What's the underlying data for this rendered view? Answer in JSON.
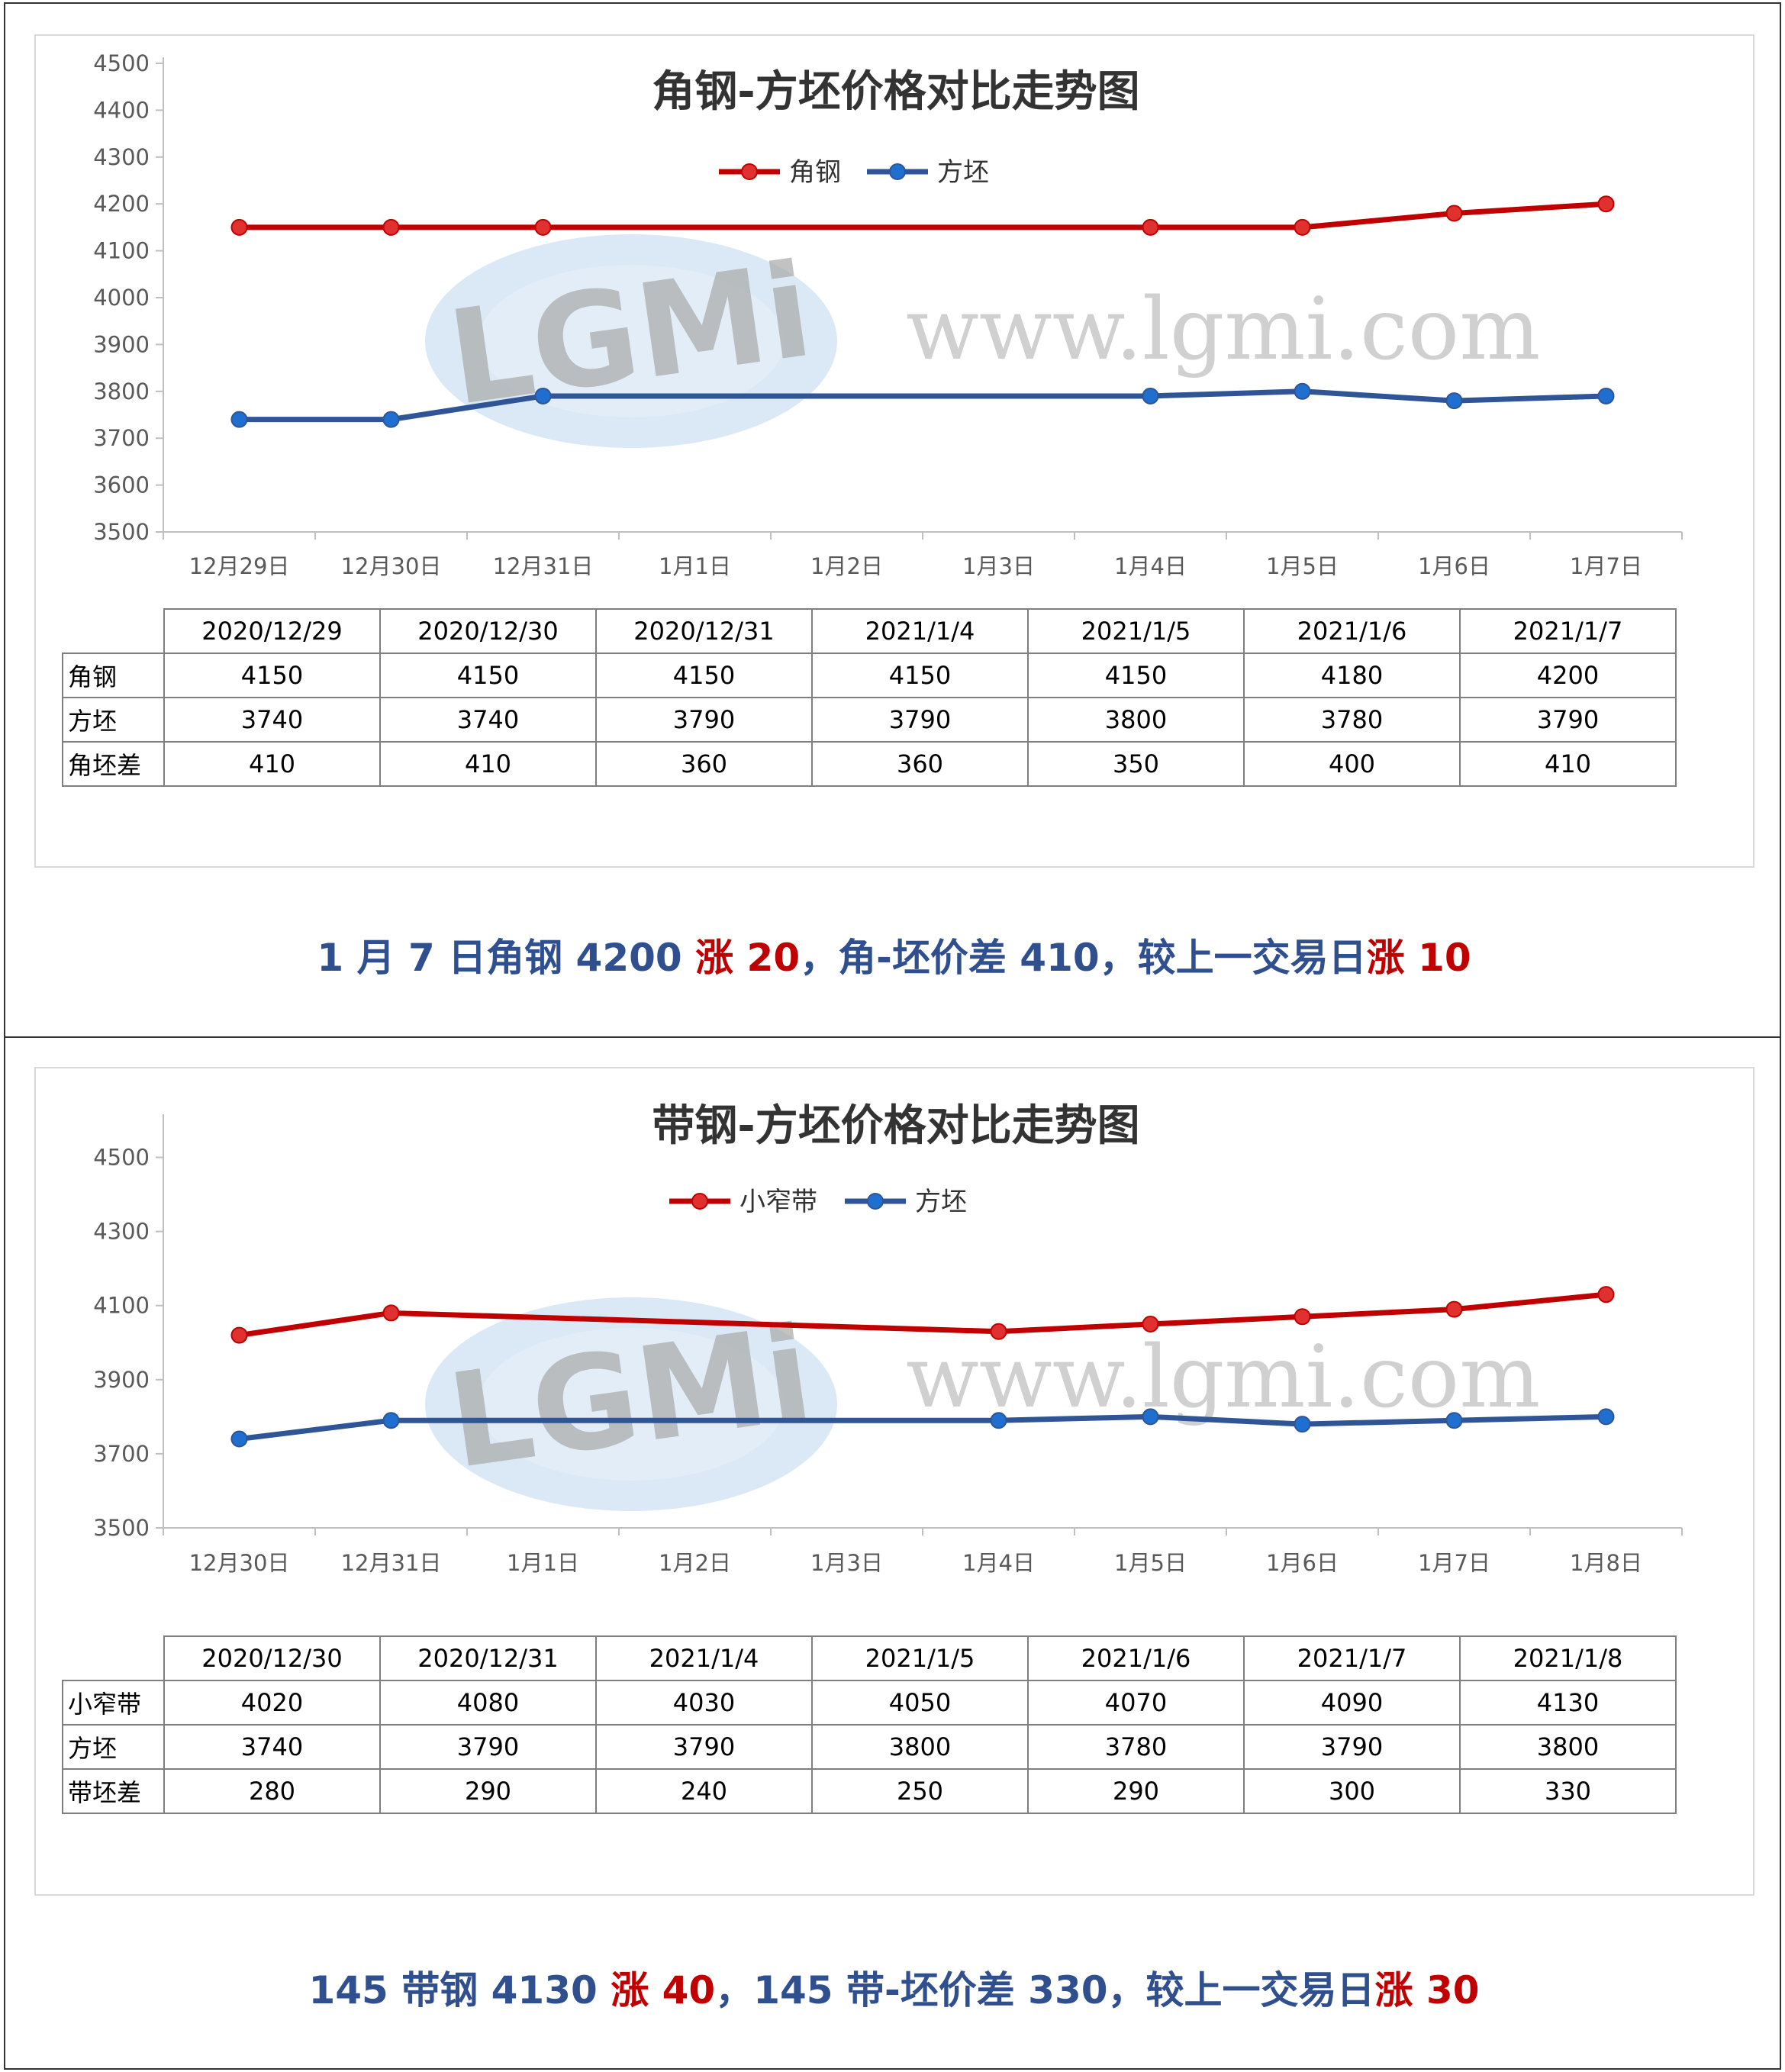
{
  "panels": [
    {
      "summary": [
        {
          "text": "1 月 7 日角钢 4200 ",
          "up": false
        },
        {
          "text": "涨 20",
          "up": true
        },
        {
          "text": "，角-坯价差 410，较上一交易日",
          "up": false
        },
        {
          "text": "涨 10",
          "up": true
        }
      ],
      "table": {
        "headers": [
          "2020/12/29",
          "2020/12/30",
          "2020/12/31",
          "2021/1/4",
          "2021/1/5",
          "2021/1/6",
          "2021/1/7"
        ],
        "rows": [
          {
            "label": "角钢",
            "values": [
              "4150",
              "4150",
              "4150",
              "4150",
              "4150",
              "4180",
              "4200"
            ]
          },
          {
            "label": "方坯",
            "values": [
              "3740",
              "3740",
              "3790",
              "3790",
              "3800",
              "3780",
              "3790"
            ]
          },
          {
            "label": "角坯差",
            "values": [
              "410",
              "410",
              "360",
              "360",
              "350",
              "400",
              "410"
            ]
          }
        ]
      }
    },
    {
      "summary": [
        {
          "text": "145 带钢 4130 ",
          "up": false
        },
        {
          "text": "涨 40",
          "up": true
        },
        {
          "text": "，145 带-坯价差 330，较上一交易日",
          "up": false
        },
        {
          "text": "涨 30",
          "up": true
        }
      ],
      "table": {
        "headers": [
          "2020/12/30",
          "2020/12/31",
          "2021/1/4",
          "2021/1/5",
          "2021/1/6",
          "2021/1/7",
          "2021/1/8"
        ],
        "rows": [
          {
            "label": "小窄带",
            "values": [
              "4020",
              "4080",
              "4030",
              "4050",
              "4070",
              "4090",
              "4130"
            ]
          },
          {
            "label": "方坯",
            "values": [
              "3740",
              "3790",
              "3790",
              "3800",
              "3780",
              "3790",
              "3800"
            ]
          },
          {
            "label": "带坯差",
            "values": [
              "280",
              "290",
              "240",
              "250",
              "290",
              "300",
              "330"
            ]
          }
        ]
      }
    }
  ],
  "watermark": {
    "logo_text": "LGMi",
    "url_text": "www.lgmi.com"
  },
  "colors": {
    "series_red": "#c00000",
    "series_blue": "#2f5597",
    "marker_red": "#e03030",
    "marker_blue": "#1f6fd0",
    "summary_blue": "#2f4f8f",
    "summary_red": "#c00000"
  },
  "chart_data": [
    {
      "type": "line",
      "title": "角钢-方坯价格对比走势图",
      "categories": [
        "12月29日",
        "12月30日",
        "12月31日",
        "1月1日",
        "1月2日",
        "1月3日",
        "1月4日",
        "1月5日",
        "1月6日",
        "1月7日"
      ],
      "yticks": [
        3500,
        3600,
        3700,
        3800,
        3900,
        4000,
        4100,
        4200,
        4300,
        4400,
        4500
      ],
      "ylim": [
        3500,
        4500
      ],
      "legend": "top",
      "grid": false,
      "series": [
        {
          "name": "角钢",
          "color": "#c00000",
          "points": [
            [
              0,
              4150
            ],
            [
              1,
              4150
            ],
            [
              2,
              4150
            ],
            [
              6,
              4150
            ],
            [
              7,
              4150
            ],
            [
              8,
              4180
            ],
            [
              9,
              4200
            ]
          ]
        },
        {
          "name": "方坯",
          "color": "#2f5597",
          "points": [
            [
              0,
              3740
            ],
            [
              1,
              3740
            ],
            [
              2,
              3790
            ],
            [
              6,
              3790
            ],
            [
              7,
              3800
            ],
            [
              8,
              3780
            ],
            [
              9,
              3790
            ]
          ]
        }
      ]
    },
    {
      "type": "line",
      "title": "带钢-方坯价格对比走势图",
      "categories": [
        "12月30日",
        "12月31日",
        "1月1日",
        "1月2日",
        "1月3日",
        "1月4日",
        "1月5日",
        "1月6日",
        "1月7日",
        "1月8日"
      ],
      "yticks": [
        3500,
        3700,
        3900,
        4100,
        4300,
        4500
      ],
      "ylim": [
        3500,
        4600
      ],
      "legend": "top",
      "grid": false,
      "series": [
        {
          "name": "小窄带",
          "color": "#c00000",
          "points": [
            [
              0,
              4020
            ],
            [
              1,
              4080
            ],
            [
              5,
              4030
            ],
            [
              6,
              4050
            ],
            [
              7,
              4070
            ],
            [
              8,
              4090
            ],
            [
              9,
              4130
            ]
          ]
        },
        {
          "name": "方坯",
          "color": "#2f5597",
          "points": [
            [
              0,
              3740
            ],
            [
              1,
              3790
            ],
            [
              5,
              3790
            ],
            [
              6,
              3800
            ],
            [
              7,
              3780
            ],
            [
              8,
              3790
            ],
            [
              9,
              3800
            ]
          ]
        }
      ]
    }
  ]
}
